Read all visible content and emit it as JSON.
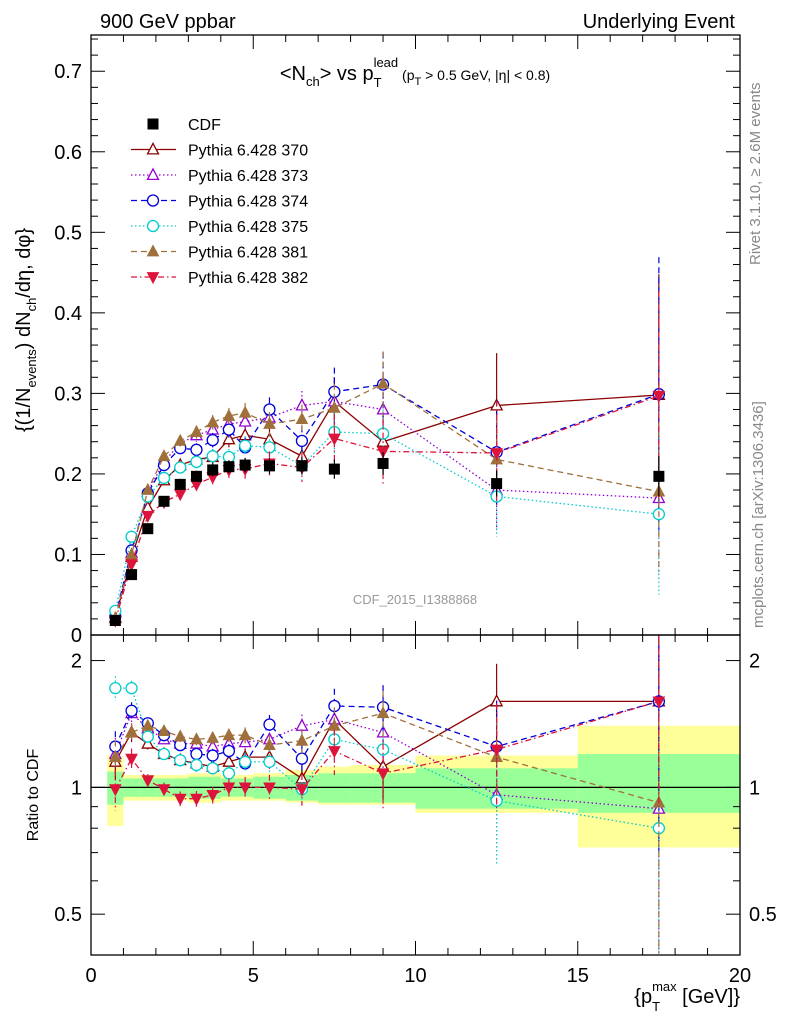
{
  "header": {
    "left": "900 GeV ppbar",
    "right": "Underlying Event"
  },
  "side_labels": {
    "rivet": "Rivet 3.1.10, ≥ 2.6M events",
    "mcplots": "mcplots.cern.ch [arXiv:1306.3436]"
  },
  "watermark": "CDF_2015_I1388868",
  "chart_data": {
    "type": "scatter",
    "title": "<N_ch> vs p_T^lead (p_T > 0.5 GeV, |η| < 0.8)",
    "ylabel": "{(1/N_events) dN_ch/dη, dφ}",
    "xlabel": "{p_T^max [GeV]}",
    "ratio_ylabel": "Ratio to CDF",
    "xlim": [
      0,
      20
    ],
    "ylim": [
      0,
      0.745
    ],
    "ratio_ylim": [
      0.4,
      2.3
    ],
    "ratio_scale": "log",
    "grid": false,
    "legend_position": "top-left",
    "x_ticks": [
      "0",
      "5",
      "10",
      "15",
      "20"
    ],
    "y_ticks": [
      "0",
      "0.1",
      "0.2",
      "0.3",
      "0.4",
      "0.5",
      "0.6",
      "0.7"
    ],
    "ratio_ticks": [
      "0.5",
      "1",
      "2"
    ],
    "x": [
      0.75,
      1.25,
      1.75,
      2.25,
      2.75,
      3.25,
      3.75,
      4.25,
      4.75,
      5.5,
      6.5,
      7.5,
      9.0,
      12.5,
      17.5
    ],
    "x_edges": [
      0.5,
      1.0,
      1.5,
      2.0,
      2.5,
      3.0,
      3.5,
      4.0,
      4.5,
      5.0,
      6.0,
      7.0,
      8.0,
      10.0,
      15.0,
      20.0
    ],
    "data": {
      "name": "CDF",
      "color": "#000000",
      "values": [
        0.018,
        0.075,
        0.132,
        0.166,
        0.187,
        0.197,
        0.205,
        0.209,
        0.211,
        0.21,
        0.21,
        0.206,
        0.213,
        0.188,
        0.197
      ],
      "errors": [
        0.002,
        0.004,
        0.005,
        0.006,
        0.007,
        0.007,
        0.008,
        0.008,
        0.009,
        0.01,
        0.011,
        0.012,
        0.014,
        0.016,
        0.025
      ],
      "band_stat_lo": [
        0.91,
        0.95,
        0.95,
        0.95,
        0.95,
        0.94,
        0.94,
        0.95,
        0.95,
        0.94,
        0.93,
        0.92,
        0.92,
        0.89,
        0.87
      ],
      "band_stat_hi": [
        1.09,
        1.05,
        1.05,
        1.05,
        1.05,
        1.06,
        1.06,
        1.05,
        1.05,
        1.06,
        1.07,
        1.08,
        1.08,
        1.11,
        1.2
      ],
      "band_tot_lo": [
        0.81,
        0.93,
        0.93,
        0.93,
        0.93,
        0.92,
        0.92,
        0.93,
        0.93,
        0.93,
        0.92,
        0.91,
        0.91,
        0.87,
        0.72
      ],
      "band_tot_hi": [
        1.19,
        1.07,
        1.07,
        1.07,
        1.07,
        1.08,
        1.08,
        1.07,
        1.07,
        1.08,
        1.1,
        1.12,
        1.13,
        1.19,
        1.4
      ]
    },
    "series": [
      {
        "name": "Pythia 6.428 370",
        "color": "#8b0000",
        "marker": "triangle-up-open",
        "dash": "solid",
        "values": [
          0.021,
          0.097,
          0.158,
          0.192,
          0.211,
          0.218,
          0.221,
          0.243,
          0.248,
          0.243,
          0.222,
          0.29,
          0.24,
          0.285,
          0.298
        ],
        "errors": [
          0.002,
          0.005,
          0.005,
          0.006,
          0.007,
          0.008,
          0.009,
          0.01,
          0.012,
          0.015,
          0.018,
          0.03,
          0.04,
          0.065,
          0.15
        ],
        "ratio": [
          1.15,
          1.35,
          1.27,
          1.2,
          1.16,
          1.14,
          1.12,
          1.15,
          1.18,
          1.18,
          1.05,
          1.45,
          1.12,
          1.6,
          1.6
        ]
      },
      {
        "name": "Pythia 6.428 373",
        "color": "#9400d3",
        "marker": "triangle-up-open",
        "dash": "1.5,2.5",
        "values": [
          0.022,
          0.102,
          0.178,
          0.215,
          0.238,
          0.248,
          0.255,
          0.262,
          0.265,
          0.27,
          0.285,
          0.29,
          0.28,
          0.18,
          0.17
        ],
        "errors": [
          0.002,
          0.005,
          0.005,
          0.006,
          0.007,
          0.008,
          0.009,
          0.01,
          0.012,
          0.015,
          0.018,
          0.03,
          0.04,
          0.05,
          0.1
        ],
        "ratio": [
          1.2,
          1.5,
          1.38,
          1.3,
          1.27,
          1.27,
          1.25,
          1.27,
          1.28,
          1.3,
          1.4,
          1.45,
          1.35,
          0.96,
          0.89
        ]
      },
      {
        "name": "Pythia 6.428 374",
        "color": "#0000dd",
        "marker": "circle-open",
        "dash": "6,4",
        "values": [
          0.023,
          0.105,
          0.176,
          0.211,
          0.232,
          0.23,
          0.242,
          0.255,
          0.233,
          0.28,
          0.241,
          0.302,
          0.311,
          0.227,
          0.299
        ],
        "errors": [
          0.002,
          0.005,
          0.005,
          0.006,
          0.007,
          0.008,
          0.009,
          0.01,
          0.012,
          0.015,
          0.018,
          0.03,
          0.04,
          0.065,
          0.17
        ],
        "ratio": [
          1.25,
          1.52,
          1.42,
          1.33,
          1.26,
          1.2,
          1.19,
          1.22,
          1.14,
          1.41,
          1.17,
          1.56,
          1.55,
          1.25,
          1.6
        ]
      },
      {
        "name": "Pythia 6.428 375",
        "color": "#00cccc",
        "marker": "circle-open",
        "dash": "1.5,2.5",
        "values": [
          0.03,
          0.122,
          0.172,
          0.195,
          0.208,
          0.215,
          0.222,
          0.221,
          0.235,
          0.233,
          0.21,
          0.252,
          0.25,
          0.172,
          0.15
        ],
        "errors": [
          0.002,
          0.005,
          0.005,
          0.006,
          0.007,
          0.008,
          0.009,
          0.01,
          0.012,
          0.015,
          0.018,
          0.03,
          0.04,
          0.05,
          0.1
        ],
        "ratio": [
          1.72,
          1.72,
          1.32,
          1.2,
          1.16,
          1.13,
          1.11,
          1.08,
          1.15,
          1.15,
          0.99,
          1.3,
          1.23,
          0.93,
          0.8
        ]
      },
      {
        "name": "Pythia 6.428 381",
        "color": "#a0703c",
        "marker": "triangle-up-filled",
        "dash": "6,4",
        "values": [
          0.021,
          0.1,
          0.18,
          0.222,
          0.241,
          0.252,
          0.264,
          0.272,
          0.276,
          0.262,
          0.268,
          0.282,
          0.312,
          0.218,
          0.178
        ],
        "errors": [
          0.002,
          0.005,
          0.005,
          0.006,
          0.007,
          0.008,
          0.009,
          0.01,
          0.012,
          0.015,
          0.018,
          0.03,
          0.04,
          0.05,
          0.1
        ],
        "ratio": [
          1.18,
          1.35,
          1.4,
          1.36,
          1.32,
          1.3,
          1.31,
          1.33,
          1.33,
          1.26,
          1.29,
          1.4,
          1.5,
          1.18,
          0.92
        ]
      },
      {
        "name": "Pythia 6.428 382",
        "color": "#dc143c",
        "marker": "triangle-down-filled",
        "dash": "6,3,1.5,3",
        "values": [
          0.018,
          0.088,
          0.148,
          0.165,
          0.175,
          0.187,
          0.196,
          0.205,
          0.206,
          0.213,
          0.208,
          0.244,
          0.228,
          0.226,
          0.297
        ],
        "errors": [
          0.002,
          0.005,
          0.005,
          0.006,
          0.007,
          0.008,
          0.009,
          0.01,
          0.012,
          0.015,
          0.018,
          0.03,
          0.04,
          0.065,
          0.13
        ],
        "ratio": [
          0.99,
          1.17,
          1.04,
          0.99,
          0.94,
          0.94,
          0.96,
          1.0,
          1.0,
          1.0,
          0.99,
          1.22,
          1.08,
          1.23,
          1.6
        ]
      }
    ]
  }
}
